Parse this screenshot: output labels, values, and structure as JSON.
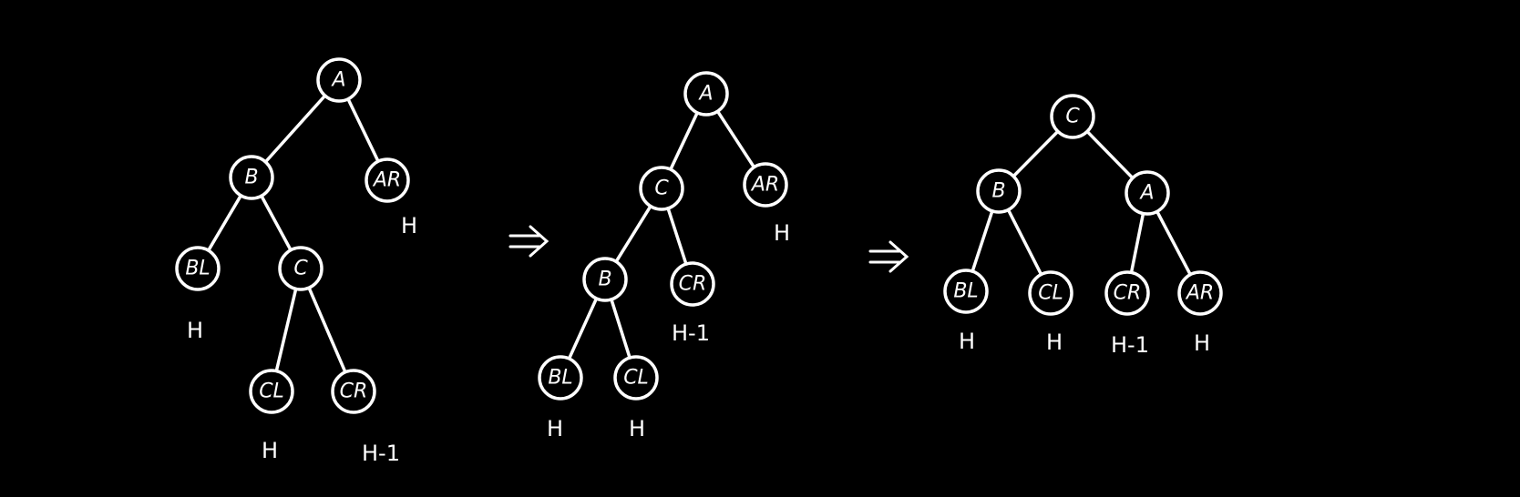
{
  "trees": [
    {
      "nodes": [
        {
          "id": "A",
          "label": "A"
        },
        {
          "id": "B",
          "label": "B"
        },
        {
          "id": "AR",
          "label": "AR"
        },
        {
          "id": "BL",
          "label": "BL"
        },
        {
          "id": "C",
          "label": "C"
        },
        {
          "id": "CL",
          "label": "CL"
        },
        {
          "id": "CR",
          "label": "CR"
        }
      ],
      "edges": [
        [
          "A",
          "B"
        ],
        [
          "A",
          "AR"
        ],
        [
          "B",
          "BL"
        ],
        [
          "B",
          "C"
        ],
        [
          "C",
          "CL"
        ],
        [
          "C",
          "CR"
        ]
      ],
      "heights": [
        {
          "node": "AR",
          "label": "H"
        },
        {
          "node": "BL",
          "label": "H"
        },
        {
          "node": "CL",
          "label": "H"
        },
        {
          "node": "CR",
          "label": "H-1"
        }
      ]
    },
    {
      "nodes": [
        {
          "id": "A",
          "label": "A"
        },
        {
          "id": "C",
          "label": "C"
        },
        {
          "id": "AR",
          "label": "AR"
        },
        {
          "id": "B",
          "label": "B"
        },
        {
          "id": "CR",
          "label": "CR"
        },
        {
          "id": "BL",
          "label": "BL"
        },
        {
          "id": "CL",
          "label": "CL"
        }
      ],
      "edges": [
        [
          "A",
          "C"
        ],
        [
          "A",
          "AR"
        ],
        [
          "C",
          "B"
        ],
        [
          "C",
          "CR"
        ],
        [
          "B",
          "BL"
        ],
        [
          "B",
          "CL"
        ]
      ],
      "heights": [
        {
          "node": "AR",
          "label": "H"
        },
        {
          "node": "CR",
          "label": "H-1"
        },
        {
          "node": "BL",
          "label": "H"
        },
        {
          "node": "CL",
          "label": "H"
        }
      ]
    },
    {
      "nodes": [
        {
          "id": "C",
          "label": "C"
        },
        {
          "id": "B",
          "label": "B"
        },
        {
          "id": "A",
          "label": "A"
        },
        {
          "id": "BL",
          "label": "BL"
        },
        {
          "id": "CL",
          "label": "CL"
        },
        {
          "id": "CR",
          "label": "CR"
        },
        {
          "id": "AR",
          "label": "AR"
        }
      ],
      "edges": [
        [
          "C",
          "B"
        ],
        [
          "C",
          "A"
        ],
        [
          "B",
          "BL"
        ],
        [
          "B",
          "CL"
        ],
        [
          "A",
          "CR"
        ],
        [
          "A",
          "AR"
        ]
      ],
      "heights": [
        {
          "node": "BL",
          "label": "H"
        },
        {
          "node": "CL",
          "label": "H"
        },
        {
          "node": "CR",
          "label": "H-1"
        },
        {
          "node": "AR",
          "label": "H"
        }
      ]
    }
  ],
  "arrows": [
    {
      "label": "⇒"
    },
    {
      "label": "⇒"
    }
  ],
  "colors": {
    "background": "#000000",
    "ink": "#ffffff"
  }
}
